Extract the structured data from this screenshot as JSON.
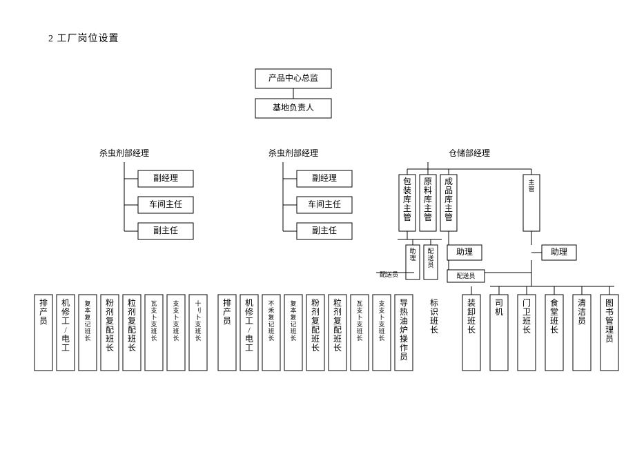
{
  "title": "2 工厂岗位设置",
  "colors": {
    "background": "#ffffff",
    "stroke": "#000000",
    "text": "#000000"
  },
  "structure_type": "org-chart",
  "nodes": {
    "top1": "产品中心总监",
    "top2": "基地负责人",
    "mgr1": "杀虫剂部经理",
    "mgr2": "杀虫剂部经理",
    "mgr3": "仓储部经理",
    "dep1_a": "副经理",
    "dep1_b": "车间主任",
    "dep1_c": "副主任",
    "dep2_a": "副经理",
    "dep2_b": "车间主任",
    "dep2_c": "副主任",
    "wh1": "包装库主管",
    "wh2": "原料库主管",
    "wh3": "成品库主管",
    "wh4": "主管",
    "zl1": "助理",
    "zl2": "配送员",
    "zl3": "助理",
    "zl4": "助理",
    "psy_label": "配送员",
    "psy2": "配送员",
    "bottom01": "排产员",
    "bottom02": "机修工/电工",
    "bottom03": "复本复记班长",
    "bottom04": "粉剂复配班长",
    "bottom05": "粒剂复配班长",
    "bottom06": "瓦支卜支班长",
    "bottom07": "支支卜支班长",
    "bottom08": "十刂卜支班长",
    "bottom09": "排产员",
    "bottom10": "机修工/电工",
    "bottom11": "不禾复记班长",
    "bottom12": "复本复记班长",
    "bottom13": "粉剂复配班长",
    "bottom14": "粒剂复配班长",
    "bottom15": "瓦支卜支班长",
    "bottom16": "支支卜支班长",
    "bottom17": "导热油炉操作员",
    "bottom18": "标识班长",
    "bottom19": "装卸班长",
    "bottom20": "司机",
    "bottom21": "门卫班长",
    "bottom22": "食堂班长",
    "bottom23": "清洁员",
    "bottom24": "图书管理员"
  }
}
